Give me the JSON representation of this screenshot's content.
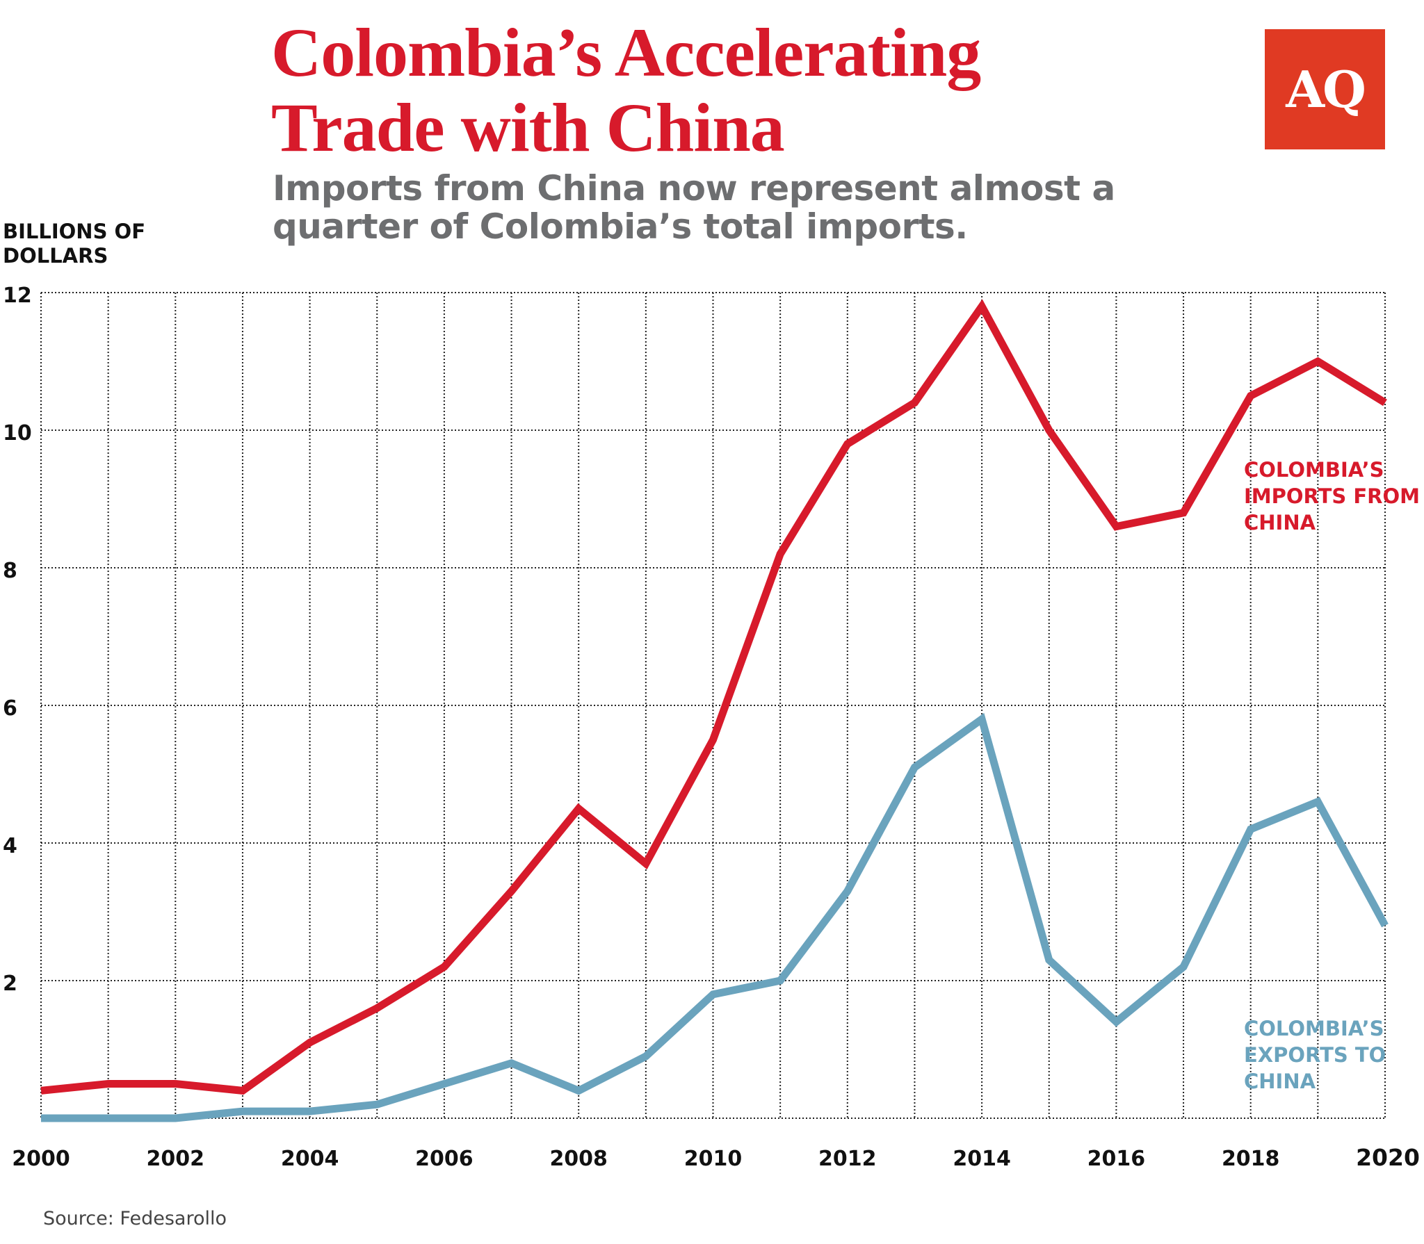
{
  "header": {
    "title_line1": "Colombia’s Accelerating",
    "title_line2": "Trade with China",
    "subtitle": "Imports from China now represent almost a quarter of Colombia’s total imports.",
    "logo_text": "AQ"
  },
  "source": "Source: Fedesarollo",
  "colors": {
    "imports": "#d71a2b",
    "exports": "#6aa3bd",
    "title": "#d71a2b",
    "subtitle": "#6d6e70",
    "logo": "#e03a23"
  },
  "chart_data": {
    "type": "line",
    "title": "Colombia’s Accelerating Trade with China",
    "subtitle": "Imports from China now represent almost a quarter of Colombia’s total imports.",
    "ylabel": "BILLIONS OF DOLLARS",
    "xlabel": "",
    "xlim": [
      2000,
      2020
    ],
    "ylim": [
      0,
      12
    ],
    "grid": true,
    "x": [
      2000,
      2001,
      2002,
      2003,
      2004,
      2005,
      2006,
      2007,
      2008,
      2009,
      2010,
      2011,
      2012,
      2013,
      2014,
      2015,
      2016,
      2017,
      2018,
      2019,
      2020
    ],
    "x_tick_labels": [
      "2000",
      "2002",
      "2004",
      "2006",
      "2008",
      "2010",
      "2012",
      "2014",
      "2016",
      "2018",
      "2020"
    ],
    "y_tick_labels": [
      "2",
      "4",
      "6",
      "8",
      "10",
      "12"
    ],
    "series": [
      {
        "name": "COLOMBIA’S IMPORTS FROM CHINA",
        "label_lines": [
          "COLOMBIA’S",
          "IMPORTS FROM",
          "CHINA"
        ],
        "color": "#d71a2b",
        "values": [
          0.4,
          0.5,
          0.5,
          0.4,
          1.1,
          1.6,
          2.2,
          3.3,
          4.5,
          3.7,
          5.5,
          8.2,
          9.8,
          10.4,
          11.8,
          10.0,
          8.6,
          8.8,
          10.5,
          11.0,
          10.4
        ]
      },
      {
        "name": "COLOMBIA’S EXPORTS TO CHINA",
        "label_lines": [
          "COLOMBIA’S",
          "EXPORTS TO",
          "CHINA"
        ],
        "color": "#6aa3bd",
        "values": [
          0.0,
          0.0,
          0.0,
          0.1,
          0.1,
          0.2,
          0.5,
          0.8,
          0.4,
          0.9,
          1.8,
          2.0,
          3.3,
          5.1,
          5.8,
          2.3,
          1.4,
          2.2,
          4.2,
          4.6,
          2.8
        ]
      }
    ]
  }
}
